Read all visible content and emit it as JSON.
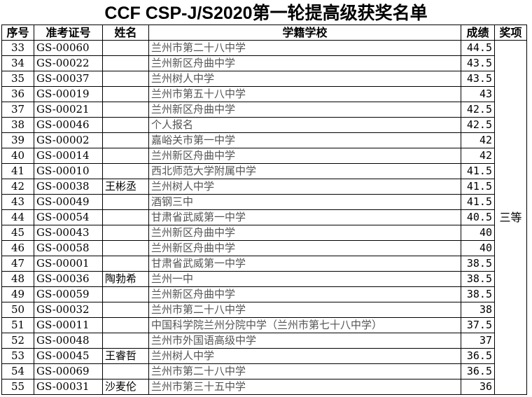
{
  "title": "CCF CSP-J/S2020第一轮提高级获奖名单",
  "headers": [
    "序号",
    "准考证号",
    "姓名",
    "学籍学校",
    "成绩",
    "奖项"
  ],
  "award": "三等",
  "rows": [
    [
      "33",
      "GS-00060",
      "",
      "兰州市第二十八中学",
      "44.5"
    ],
    [
      "34",
      "GS-00022",
      "",
      "兰州新区舟曲中学",
      "43.5"
    ],
    [
      "35",
      "GS-00037",
      "",
      "兰州树人中学",
      "43.5"
    ],
    [
      "36",
      "GS-00019",
      "",
      "兰州市第五十八中学",
      "43"
    ],
    [
      "37",
      "GS-00021",
      "",
      "兰州新区舟曲中学",
      "42.5"
    ],
    [
      "38",
      "GS-00046",
      "",
      "个人报名",
      "42.5"
    ],
    [
      "39",
      "GS-00002",
      "",
      "嘉峪关市第一中学",
      "42"
    ],
    [
      "40",
      "GS-00014",
      "",
      "兰州新区舟曲中学",
      "42"
    ],
    [
      "41",
      "GS-00010",
      "",
      "西北师范大学附属中学",
      "41.5"
    ],
    [
      "42",
      "GS-00038",
      "王彬丞",
      "兰州树人中学",
      "41.5"
    ],
    [
      "43",
      "GS-00049",
      "",
      "酒钢三中",
      "41.5"
    ],
    [
      "44",
      "GS-00054",
      "",
      "甘肃省武威第一中学",
      "40.5"
    ],
    [
      "45",
      "GS-00043",
      "",
      "兰州新区舟曲中学",
      "40"
    ],
    [
      "46",
      "GS-00058",
      "",
      "兰州新区舟曲中学",
      "40"
    ],
    [
      "47",
      "GS-00001",
      "",
      "甘肃省武威第一中学",
      "38.5"
    ],
    [
      "48",
      "GS-00036",
      "陶勃希",
      "兰州一中",
      "38.5"
    ],
    [
      "49",
      "GS-00059",
      "",
      "兰州新区舟曲中学",
      "38.5"
    ],
    [
      "50",
      "GS-00032",
      "",
      "兰州市第二十八中学",
      "38"
    ],
    [
      "51",
      "GS-00011",
      "",
      "中国科学院兰州分院中学（兰州市第七十八中学）",
      "37.5"
    ],
    [
      "52",
      "GS-00048",
      "",
      "兰州市外国语高级中学",
      "37"
    ],
    [
      "53",
      "GS-00045",
      "王睿哲",
      "兰州树人中学",
      "36.5"
    ],
    [
      "54",
      "GS-00069",
      "",
      "兰州市第二十八中学",
      "36.5"
    ],
    [
      "55",
      "GS-00031",
      "沙麦伦",
      "兰州市第三十五中学",
      "36"
    ]
  ]
}
